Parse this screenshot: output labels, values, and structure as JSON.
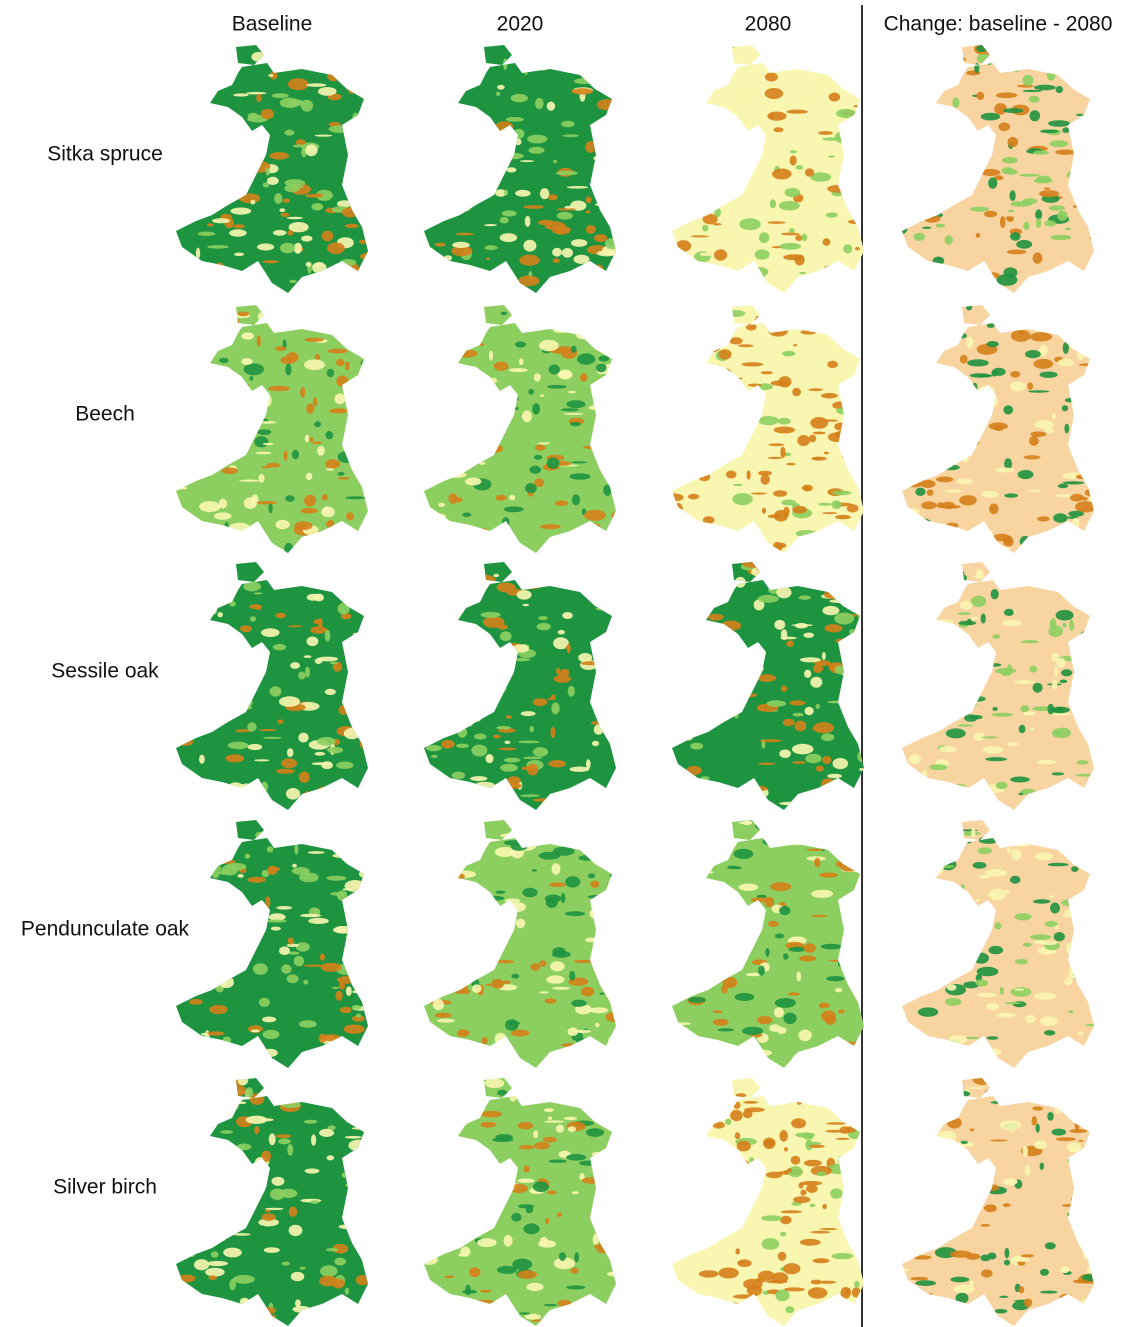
{
  "columns": [
    "Baseline",
    "2020",
    "2080",
    "Change: baseline - 2080"
  ],
  "rows": [
    "Sitka spruce",
    "Beech",
    "Sessile oak",
    "Pendunculate oak",
    "Silver birch"
  ]
}
